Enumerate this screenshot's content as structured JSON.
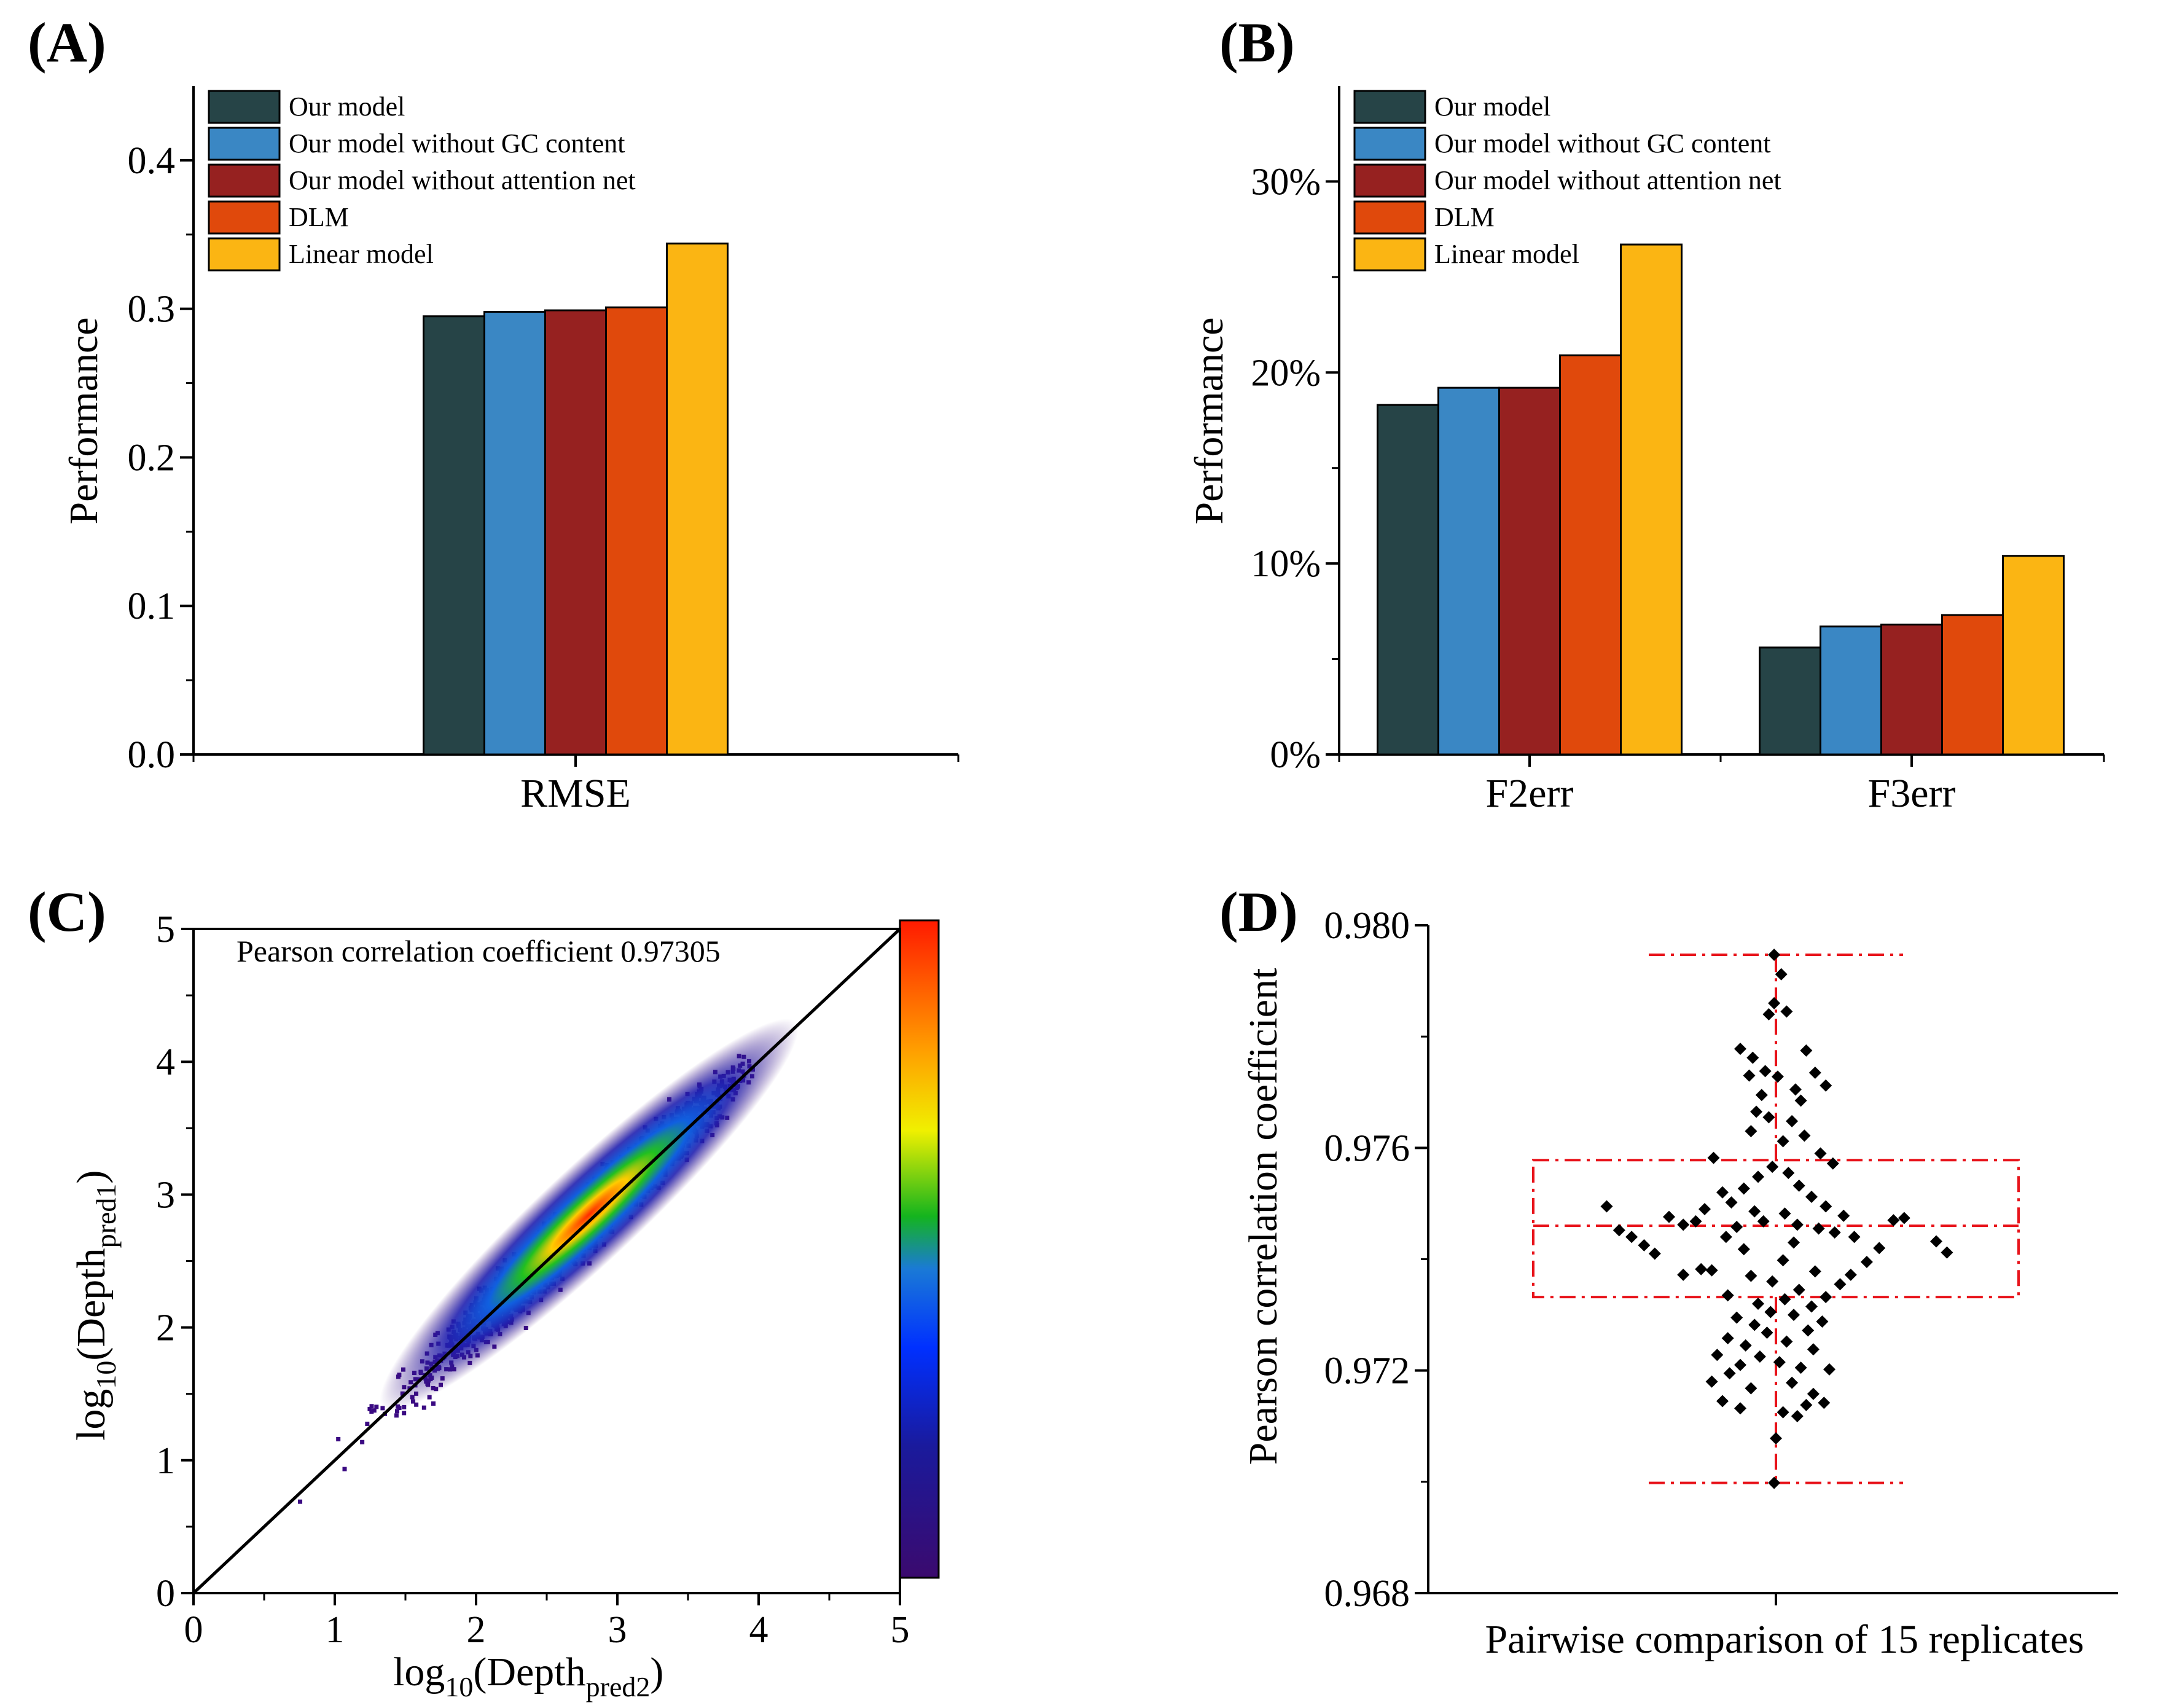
{
  "colors": {
    "series": [
      "#264447",
      "#3A87C4",
      "#962120",
      "#E0490C",
      "#FBB513"
    ],
    "box": "#E8131A",
    "points": "#000000"
  },
  "chart_data": [
    {
      "id": "A",
      "panel_label": "(A)",
      "type": "bar",
      "ylabel": "Performance",
      "xlabel": "",
      "ylim": [
        0,
        0.45
      ],
      "yticks": [
        {
          "v": 0.0,
          "label": "0.0"
        },
        {
          "v": 0.1,
          "label": "0.1"
        },
        {
          "v": 0.2,
          "label": "0.2"
        },
        {
          "v": 0.3,
          "label": "0.3"
        },
        {
          "v": 0.4,
          "label": "0.4"
        }
      ],
      "categories": [
        "RMSE"
      ],
      "series": [
        {
          "name": "Our model",
          "values": [
            0.295
          ]
        },
        {
          "name": "Our model without GC content",
          "values": [
            0.298
          ]
        },
        {
          "name": "Our model without attention net",
          "values": [
            0.299
          ]
        },
        {
          "name": "DLM",
          "values": [
            0.301
          ]
        },
        {
          "name": "Linear model",
          "values": [
            0.344
          ]
        }
      ],
      "legend": "top-left"
    },
    {
      "id": "B",
      "panel_label": "(B)",
      "type": "bar",
      "ylabel": "Performance",
      "xlabel": "",
      "ylim": [
        0,
        35
      ],
      "yticks": [
        {
          "v": 0,
          "label": "0%"
        },
        {
          "v": 10,
          "label": "10%"
        },
        {
          "v": 20,
          "label": "20%"
        },
        {
          "v": 30,
          "label": "30%"
        }
      ],
      "categories": [
        "F2err",
        "F3err"
      ],
      "series": [
        {
          "name": "Our model",
          "values": [
            18.3,
            5.6
          ]
        },
        {
          "name": "Our model without GC content",
          "values": [
            19.2,
            6.7
          ]
        },
        {
          "name": "Our model without attention net",
          "values": [
            19.2,
            6.8
          ]
        },
        {
          "name": "DLM",
          "values": [
            20.9,
            7.3
          ]
        },
        {
          "name": "Linear model",
          "values": [
            26.7,
            10.4
          ]
        }
      ],
      "legend": "top-left"
    },
    {
      "id": "C",
      "panel_label": "(C)",
      "type": "heatmap",
      "annotation": "Pearson correlation coefficient 0.97305",
      "pearson_r": 0.97305,
      "xlabel_parts": {
        "base": "log",
        "sub1": "10",
        "mid": "(Depth",
        "sub2": "pred2",
        "end": ")"
      },
      "ylabel_parts": {
        "base": "log",
        "sub1": "10",
        "mid": "(Depth",
        "sub2": "pred1",
        "end": ")"
      },
      "xlim": [
        0,
        5
      ],
      "ylim": [
        0,
        5
      ],
      "ticks": [
        {
          "v": 0,
          "label": "0"
        },
        {
          "v": 1,
          "label": "1"
        },
        {
          "v": 2,
          "label": "2"
        },
        {
          "v": 3,
          "label": "3"
        },
        {
          "v": 4,
          "label": "4"
        },
        {
          "v": 5,
          "label": "5"
        }
      ],
      "density_center": [
        2.8,
        2.85
      ],
      "x_range": [
        0.6,
        3.95
      ],
      "reference_line": "y = x",
      "colorbar": true
    },
    {
      "id": "D",
      "panel_label": "(D)",
      "type": "scatter",
      "subtype": "box-with-points",
      "ylabel": "Pearson correlation coefficient",
      "xlabel": "Pairwise comparison of 15 replicates",
      "ylim": [
        0.968,
        0.98
      ],
      "yticks": [
        {
          "v": 0.968,
          "label": "0.968"
        },
        {
          "v": 0.972,
          "label": "0.972"
        },
        {
          "v": 0.976,
          "label": "0.976"
        },
        {
          "v": 0.98,
          "label": "0.980"
        }
      ],
      "box": {
        "q1": 0.97332,
        "median": 0.9746,
        "q3": 0.97578,
        "whisker_low": 0.96998,
        "whisker_high": 0.97947
      },
      "points": [
        {
          "dx": -0.01,
          "y": 0.97947
        },
        {
          "dx": 0.03,
          "y": 0.97912
        },
        {
          "dx": -0.01,
          "y": 0.9786
        },
        {
          "dx": 0.06,
          "y": 0.97845
        },
        {
          "dx": -0.04,
          "y": 0.9784
        },
        {
          "dx": -0.2,
          "y": 0.97778
        },
        {
          "dx": 0.17,
          "y": 0.97775
        },
        {
          "dx": -0.13,
          "y": 0.97762
        },
        {
          "dx": 0.22,
          "y": 0.97735
        },
        {
          "dx": -0.06,
          "y": 0.97738
        },
        {
          "dx": -0.15,
          "y": 0.9773
        },
        {
          "dx": 0.01,
          "y": 0.97728
        },
        {
          "dx": 0.28,
          "y": 0.97712
        },
        {
          "dx": 0.11,
          "y": 0.97705
        },
        {
          "dx": -0.08,
          "y": 0.97695
        },
        {
          "dx": 0.14,
          "y": 0.97685
        },
        {
          "dx": -0.11,
          "y": 0.97665
        },
        {
          "dx": -0.04,
          "y": 0.97655
        },
        {
          "dx": 0.09,
          "y": 0.97648
        },
        {
          "dx": -0.14,
          "y": 0.9763
        },
        {
          "dx": 0.16,
          "y": 0.97622
        },
        {
          "dx": 0.04,
          "y": 0.97612
        },
        {
          "dx": 0.25,
          "y": 0.9759
        },
        {
          "dx": -0.35,
          "y": 0.97582
        },
        {
          "dx": 0.32,
          "y": 0.97572
        },
        {
          "dx": -0.02,
          "y": 0.97566
        },
        {
          "dx": 0.07,
          "y": 0.97555
        },
        {
          "dx": -0.1,
          "y": 0.97548
        },
        {
          "dx": 0.13,
          "y": 0.97532
        },
        {
          "dx": -0.18,
          "y": 0.97527
        },
        {
          "dx": -0.3,
          "y": 0.9752
        },
        {
          "dx": 0.2,
          "y": 0.97512
        },
        {
          "dx": -0.25,
          "y": 0.97502
        },
        {
          "dx": 0.28,
          "y": 0.97495
        },
        {
          "dx": -0.95,
          "y": 0.97495
        },
        {
          "dx": -0.4,
          "y": 0.9749
        },
        {
          "dx": -0.12,
          "y": 0.97486
        },
        {
          "dx": 0.05,
          "y": 0.97482
        },
        {
          "dx": 0.38,
          "y": 0.97478
        },
        {
          "dx": -0.6,
          "y": 0.97476
        },
        {
          "dx": 0.72,
          "y": 0.97474
        },
        {
          "dx": -0.45,
          "y": 0.97468
        },
        {
          "dx": 0.66,
          "y": 0.9747
        },
        {
          "dx": -0.07,
          "y": 0.97468
        },
        {
          "dx": 0.12,
          "y": 0.97462
        },
        {
          "dx": -0.52,
          "y": 0.97462
        },
        {
          "dx": -0.22,
          "y": 0.97458
        },
        {
          "dx": 0.24,
          "y": 0.97455
        },
        {
          "dx": -0.88,
          "y": 0.97452
        },
        {
          "dx": -0.28,
          "y": 0.9744
        },
        {
          "dx": 0.44,
          "y": 0.9744
        },
        {
          "dx": 0.33,
          "y": 0.97448
        },
        {
          "dx": -0.81,
          "y": 0.9744
        },
        {
          "dx": 0.9,
          "y": 0.97432
        },
        {
          "dx": 0.1,
          "y": 0.9743
        },
        {
          "dx": -0.74,
          "y": 0.97425
        },
        {
          "dx": -0.18,
          "y": 0.97418
        },
        {
          "dx": 0.58,
          "y": 0.9742
        },
        {
          "dx": 0.96,
          "y": 0.97412
        },
        {
          "dx": -0.68,
          "y": 0.9741
        },
        {
          "dx": 0.04,
          "y": 0.97398
        },
        {
          "dx": 0.51,
          "y": 0.97395
        },
        {
          "dx": -0.36,
          "y": 0.9738
        },
        {
          "dx": 0.22,
          "y": 0.97378
        },
        {
          "dx": -0.42,
          "y": 0.97382
        },
        {
          "dx": -0.52,
          "y": 0.97372
        },
        {
          "dx": -0.14,
          "y": 0.9737
        },
        {
          "dx": 0.42,
          "y": 0.97372
        },
        {
          "dx": -0.02,
          "y": 0.9736
        },
        {
          "dx": 0.36,
          "y": 0.97355
        },
        {
          "dx": 0.13,
          "y": 0.97345
        },
        {
          "dx": -0.27,
          "y": 0.97335
        },
        {
          "dx": 0.28,
          "y": 0.97332
        },
        {
          "dx": 0.05,
          "y": 0.97328
        },
        {
          "dx": -0.1,
          "y": 0.9732
        },
        {
          "dx": 0.2,
          "y": 0.97315
        },
        {
          "dx": -0.03,
          "y": 0.97305
        },
        {
          "dx": 0.1,
          "y": 0.973
        },
        {
          "dx": -0.22,
          "y": 0.97295
        },
        {
          "dx": 0.26,
          "y": 0.97288
        },
        {
          "dx": -0.12,
          "y": 0.97282
        },
        {
          "dx": 0.18,
          "y": 0.97272
        },
        {
          "dx": -0.05,
          "y": 0.97268
        },
        {
          "dx": -0.27,
          "y": 0.97258
        },
        {
          "dx": 0.06,
          "y": 0.97252
        },
        {
          "dx": -0.17,
          "y": 0.97245
        },
        {
          "dx": 0.21,
          "y": 0.97238
        },
        {
          "dx": -0.33,
          "y": 0.97228
        },
        {
          "dx": -0.09,
          "y": 0.97225
        },
        {
          "dx": 0.02,
          "y": 0.97215
        },
        {
          "dx": -0.2,
          "y": 0.9721
        },
        {
          "dx": 0.14,
          "y": 0.97205
        },
        {
          "dx": 0.3,
          "y": 0.97202
        },
        {
          "dx": -0.26,
          "y": 0.97195
        },
        {
          "dx": -0.36,
          "y": 0.9718
        },
        {
          "dx": 0.09,
          "y": 0.97178
        },
        {
          "dx": -0.14,
          "y": 0.97168
        },
        {
          "dx": 0.21,
          "y": 0.97158
        },
        {
          "dx": -0.3,
          "y": 0.97145
        },
        {
          "dx": 0.27,
          "y": 0.97142
        },
        {
          "dx": 0.17,
          "y": 0.97138
        },
        {
          "dx": -0.2,
          "y": 0.97132
        },
        {
          "dx": 0.04,
          "y": 0.97125
        },
        {
          "dx": 0.12,
          "y": 0.97118
        },
        {
          "dx": 0.0,
          "y": 0.97078
        },
        {
          "dx": -0.01,
          "y": 0.96998
        }
      ]
    }
  ]
}
